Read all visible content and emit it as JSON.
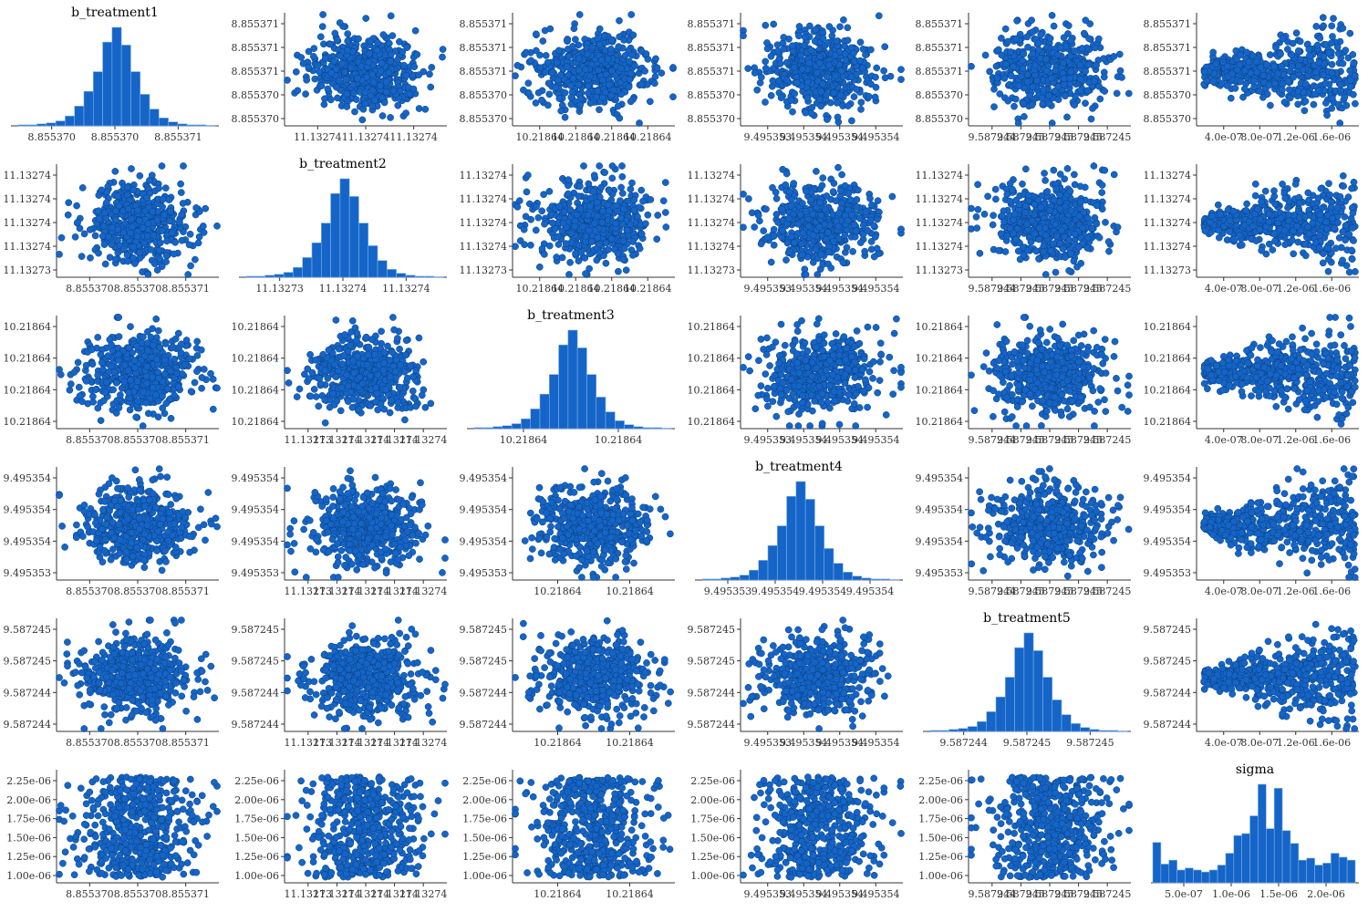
{
  "colors": {
    "point_fill": "#1565c8",
    "point_stroke": "#0b3f7a",
    "bar_fill": "#1565c8",
    "bar_stroke": "#7fb0e6",
    "axis": "#333333"
  },
  "chart_data": {
    "type": "scatter",
    "layout": "pairs",
    "variables": [
      "b_treatment1",
      "b_treatment2",
      "b_treatment3",
      "b_treatment4",
      "b_treatment5",
      "sigma"
    ],
    "diagonal_type": "histogram",
    "x_tick_labels": [
      [
        "8.855370",
        "8.855370",
        "8.855371"
      ],
      [
        "11.13273",
        "11.13274",
        "11.13274"
      ],
      [
        "10.21864",
        "10.21864"
      ],
      [
        "9.495353",
        "9.495354",
        "9.495354",
        "9.495354"
      ],
      [
        "9.587244",
        "9.587245",
        "9.587245"
      ],
      [
        "5.0e-07",
        "1.0e-06",
        "1.5e-06",
        "2.0e-06"
      ]
    ],
    "y_tick_labels": [
      [
        "8.855371",
        "8.855371",
        "8.855371",
        "8.855370",
        "8.855370"
      ],
      [
        "11.13274",
        "11.13274",
        "11.13274",
        "11.13274",
        "11.13273"
      ],
      [
        "10.21864",
        "10.21864",
        "10.21864",
        "10.21864"
      ],
      [
        "9.495354",
        "9.495354",
        "9.495354",
        "9.495353"
      ],
      [
        "9.587245",
        "9.587245",
        "9.587244",
        "9.587244"
      ],
      [
        "2.25e-06",
        "2.00e-06",
        "1.75e-06",
        "1.50e-06",
        "1.25e-06",
        "1.00e-06"
      ]
    ],
    "column_x_tick_overrides": {
      "row_0": [
        [
          "8.855370",
          "8.855370",
          "8.855371"
        ],
        [
          "11.13274",
          "11.13274",
          "11.13274"
        ],
        [
          "10.21864",
          "10.21864",
          "10.21864",
          "10.21864"
        ],
        [
          "9.495353",
          "9.495354",
          "9.495354",
          "9.495354"
        ],
        [
          "9.587244",
          "9.587245",
          "9.587245",
          "9.587245",
          "9.587245"
        ],
        [
          "4.0e-07",
          "8.0e-07",
          "1.2e-06",
          "1.6e-06"
        ]
      ],
      "row_1": [
        [
          "8.855370",
          "8.855370",
          "8.855371"
        ],
        [
          "11.13273",
          "11.13274",
          "11.13274"
        ],
        [
          "10.21864",
          "10.21864",
          "10.21864",
          "10.21864"
        ],
        [
          "9.495353",
          "9.495354",
          "9.495354",
          "9.495354"
        ],
        [
          "9.587244",
          "9.587245",
          "9.587245",
          "9.587245",
          "9.587245"
        ],
        [
          "4.0e-07",
          "8.0e-07",
          "1.2e-06",
          "1.6e-06"
        ]
      ],
      "row_2": [
        [
          "8.855370",
          "8.855370",
          "8.855371"
        ],
        [
          "11.13273",
          "11.13274",
          "11.13274",
          "11.13274",
          "11.13274"
        ],
        [
          "10.21864",
          "10.21864"
        ],
        [
          "9.495353",
          "9.495354",
          "9.495354",
          "9.495354"
        ],
        [
          "9.587244",
          "9.587245",
          "9.587245",
          "9.587245",
          "9.587245"
        ],
        [
          "4.0e-07",
          "8.0e-07",
          "1.2e-06",
          "1.6e-06"
        ]
      ],
      "row_3": [
        [
          "8.855370",
          "8.855370",
          "8.855371"
        ],
        [
          "11.13273",
          "11.13274",
          "11.13274",
          "11.13274",
          "11.13274"
        ],
        [
          "10.21864",
          "10.21864"
        ],
        [
          "9.495353",
          "9.495354",
          "9.495354",
          "9.495354"
        ],
        [
          "9.587244",
          "9.587245",
          "9.587245",
          "9.587245",
          "9.587245"
        ],
        [
          "4.0e-07",
          "8.0e-07",
          "1.2e-06",
          "1.6e-06"
        ]
      ],
      "row_4": [
        [
          "8.855370",
          "8.855370",
          "8.855371"
        ],
        [
          "11.13273",
          "11.13274",
          "11.13274",
          "11.13274",
          "11.13274"
        ],
        [
          "10.21864",
          "10.21864"
        ],
        [
          "9.495353",
          "9.495354",
          "9.495354",
          "9.495354"
        ],
        [
          "9.587244",
          "9.587245",
          "9.587245"
        ],
        [
          "4.0e-07",
          "8.0e-07",
          "1.2e-06",
          "1.6e-06"
        ]
      ],
      "row_5": [
        [
          "8.855370",
          "8.855370",
          "8.855371"
        ],
        [
          "11.13273",
          "11.13274",
          "11.13274",
          "11.13274",
          "11.13274"
        ],
        [
          "10.21864",
          "10.21864"
        ],
        [
          "9.495353",
          "9.495354",
          "9.495354",
          "9.495354"
        ],
        [
          "9.587244",
          "9.587245",
          "9.587245",
          "9.587245",
          "9.587245"
        ],
        [
          "5.0e-07",
          "1.0e-06",
          "1.5e-06",
          "2.0e-06"
        ]
      ]
    },
    "row_y_ticks": [
      [
        "8.855371",
        "8.855371",
        "8.855371",
        "8.855370",
        "8.855370"
      ],
      [
        "11.13274",
        "11.13274",
        "11.13274",
        "11.13274",
        "11.13273"
      ],
      [
        "10.21864",
        "10.21864",
        "10.21864",
        "10.21864"
      ],
      [
        "9.495354",
        "9.495354",
        "9.495354",
        "9.495353"
      ],
      [
        "9.587245",
        "9.587245",
        "9.587244",
        "9.587244"
      ],
      [
        "2.25e-06",
        "2.00e-06",
        "1.75e-06",
        "1.50e-06",
        "1.25e-06",
        "1.00e-06"
      ]
    ],
    "row_y_ticks_diag_neighbor": [
      [
        "8.855371",
        "8.855371",
        "8.855371",
        "8.855370",
        "8.855370"
      ],
      [
        "11.13274",
        "11.13274",
        "11.13274",
        "11.13274",
        "11.13273"
      ],
      [
        "10.21864",
        "10.21864"
      ],
      [
        "9.495354",
        "9.495354",
        "9.495354",
        "9.495353"
      ],
      [
        "9.587245",
        "9.587245",
        "9.587244",
        "9.587244"
      ],
      [
        "2.25e-06",
        "2.00e-06",
        "1.75e-06",
        "1.50e-06",
        "1.25e-06",
        "1.00e-06"
      ]
    ],
    "sigma_hist_relative": [
      0.41,
      0.19,
      0.23,
      0.13,
      0.15,
      0.13,
      0.11,
      0.13,
      0.18,
      0.3,
      0.48,
      0.5,
      0.68,
      1.0,
      0.55,
      0.96,
      0.53,
      0.4,
      0.23,
      0.25,
      0.18,
      0.2,
      0.3,
      0.26,
      0.23
    ],
    "normal_hist_relative": [
      0.01,
      0.01,
      0.02,
      0.03,
      0.05,
      0.1,
      0.2,
      0.35,
      0.55,
      0.85,
      1.0,
      0.82,
      0.55,
      0.32,
      0.17,
      0.08,
      0.04,
      0.02,
      0.01,
      0.01,
      0.005
    ]
  }
}
